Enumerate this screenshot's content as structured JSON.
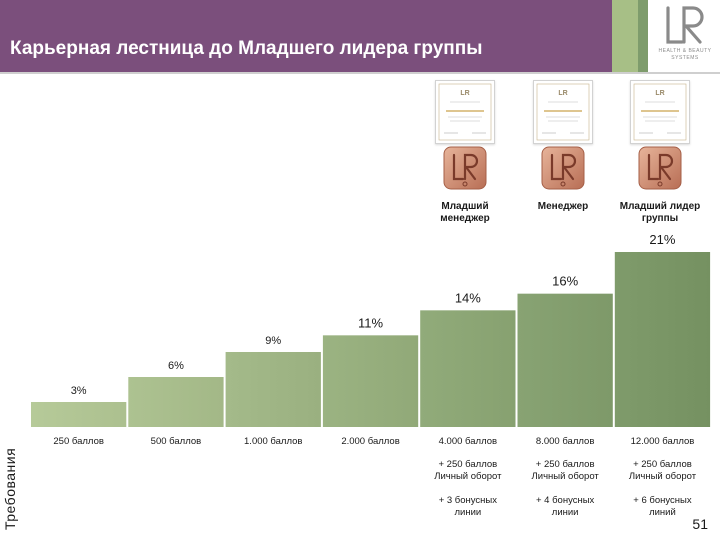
{
  "header": {
    "title": "Карьерная лестница до Младшего лидера группы",
    "logo_letters": "LR",
    "logo_line1": "HEALTH & BEAUTY",
    "logo_line2": "SYSTEMS"
  },
  "ranks": [
    {
      "label_line1": "Младший",
      "label_line2": "менеджер",
      "badge_letters": "LR"
    },
    {
      "label_line1": "Менеджер",
      "label_line2": "",
      "badge_letters": "LR"
    },
    {
      "label_line1": "Младший лидер",
      "label_line2": "группы",
      "badge_letters": "LR"
    }
  ],
  "requirements_label": "Требования",
  "page_number": "51",
  "colors": {
    "header": "#7b4f7c",
    "bar_light": "#b6ca99",
    "bar_dark": "#7f9b6b"
  },
  "chart_data": {
    "type": "bar",
    "title": "",
    "categories": [
      "250 баллов",
      "500 баллов",
      "1.000 баллов",
      "2.000 баллов",
      "4.000 баллов",
      "8.000 баллов",
      "12.000 баллов"
    ],
    "values": [
      3,
      6,
      9,
      11,
      14,
      16,
      21
    ],
    "labels": [
      "3%",
      "6%",
      "9%",
      "11%",
      "14%",
      "16%",
      "21%"
    ],
    "ylim": [
      0,
      21
    ],
    "xlabel": "",
    "ylabel": "",
    "turnover": [
      "",
      "",
      "",
      "",
      "+ 250 баллов|Личный оборот",
      "+ 250 баллов|Личный оборот",
      "+ 250 баллов|Личный оборот"
    ],
    "lines": [
      "",
      "",
      "",
      "",
      "+ 3 бонусных|линии",
      "+ 4 бонусных|линии",
      "+ 6 бонусных|линий"
    ]
  }
}
